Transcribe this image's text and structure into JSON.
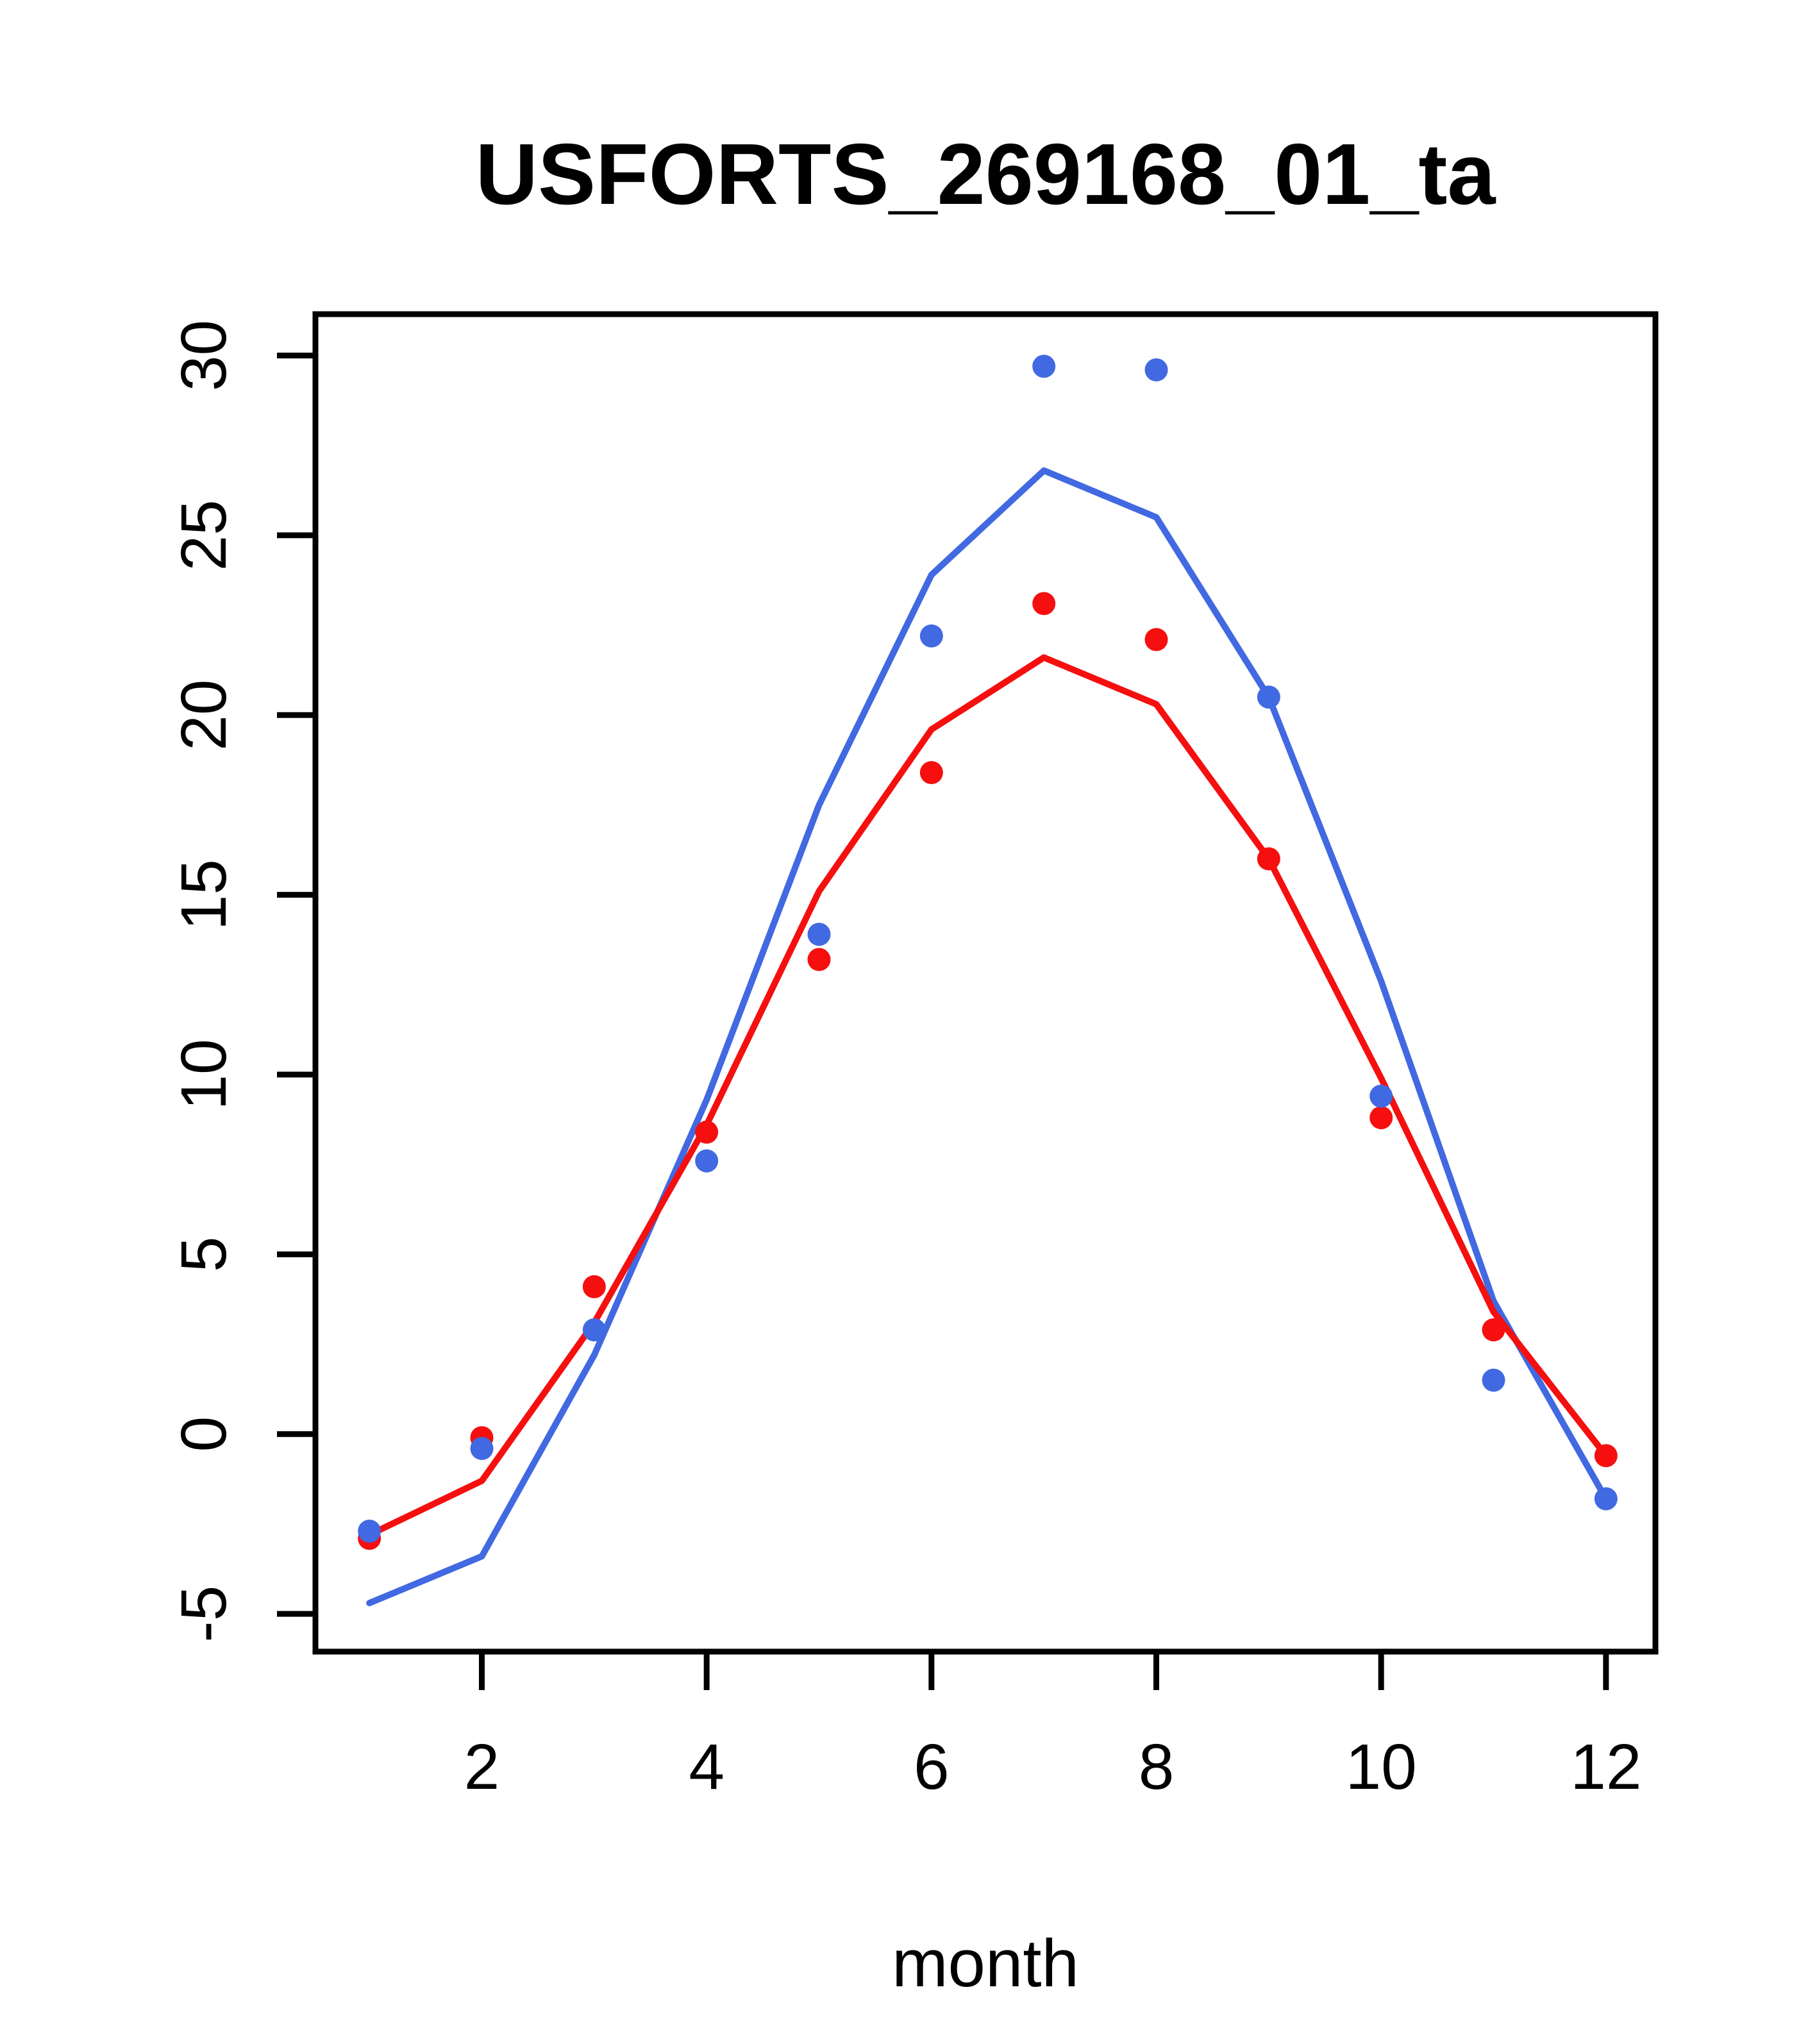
{
  "title": "USFORTS_269168_01_ta",
  "chart_data": {
    "type": "line",
    "title": "USFORTS_269168_01_ta",
    "xlabel": "month",
    "ylabel": "",
    "x": [
      1,
      2,
      3,
      4,
      5,
      6,
      7,
      8,
      9,
      10,
      11,
      12
    ],
    "x_ticks": [
      2,
      4,
      6,
      8,
      10,
      12
    ],
    "y_ticks": [
      -5,
      0,
      5,
      10,
      15,
      20,
      25,
      30
    ],
    "xlim": [
      0.52,
      12.44
    ],
    "ylim": [
      -6.05,
      31.15
    ],
    "grid": false,
    "legend_position": "none",
    "series": [
      {
        "name": "blue-line",
        "kind": "line",
        "color": "#4169E1",
        "values": [
          -4.7,
          -3.4,
          2.2,
          9.3,
          17.5,
          23.9,
          26.8,
          25.5,
          20.5,
          12.6,
          3.7,
          -1.8
        ]
      },
      {
        "name": "red-line",
        "kind": "line",
        "color": "#F50F0F",
        "values": [
          -2.8,
          -1.3,
          3.1,
          8.6,
          15.1,
          19.6,
          21.6,
          20.3,
          16.0,
          9.9,
          3.4,
          -0.6
        ]
      },
      {
        "name": "red-points",
        "kind": "scatter",
        "color": "#F50F0F",
        "values": [
          -2.9,
          -0.1,
          4.1,
          8.4,
          13.2,
          18.4,
          23.1,
          22.1,
          16.0,
          8.8,
          2.9,
          -0.6
        ]
      },
      {
        "name": "blue-points",
        "kind": "scatter",
        "color": "#4169E1",
        "values": [
          -2.7,
          -0.4,
          2.9,
          7.6,
          13.9,
          22.2,
          29.7,
          29.6,
          20.5,
          9.4,
          1.5,
          -1.8
        ]
      }
    ]
  },
  "style": {
    "axis_color": "#000000",
    "background": "#ffffff",
    "line_width": 10,
    "point_radius": 18,
    "box_stroke": 9,
    "tick_length": 60
  }
}
